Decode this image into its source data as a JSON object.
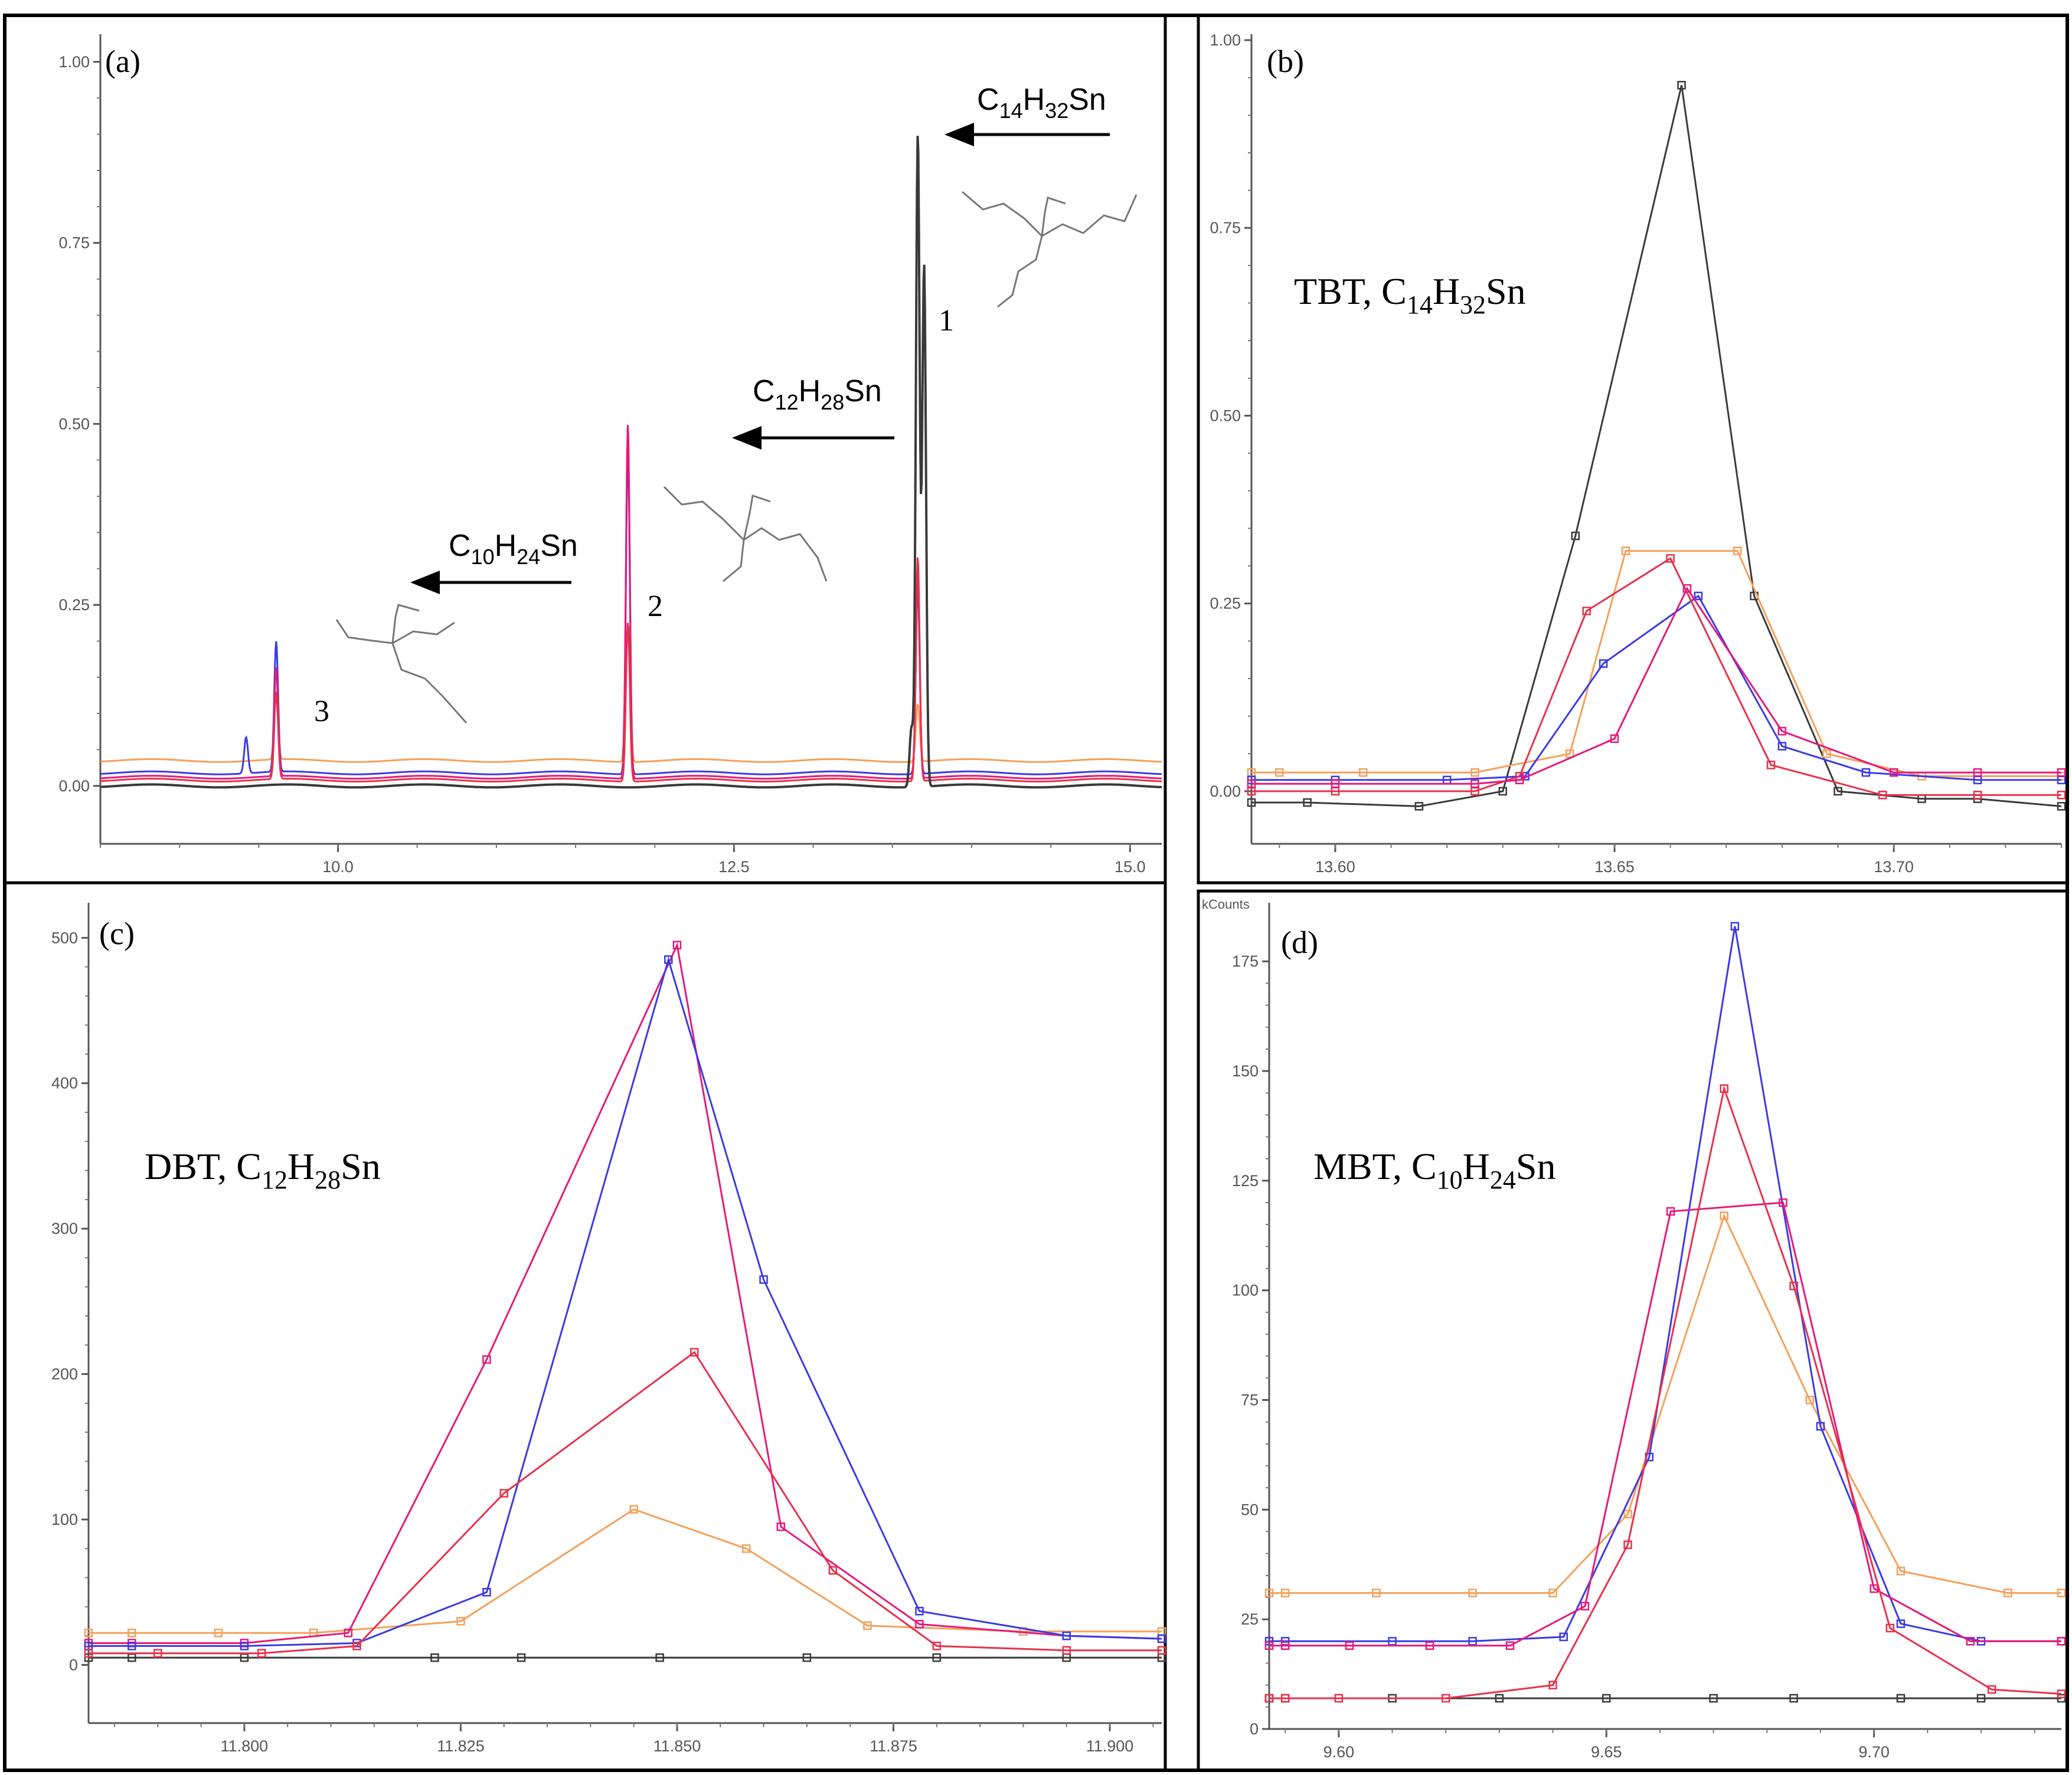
{
  "figure": {
    "background": "#ffffff",
    "border_color": "#000000",
    "colors": {
      "black": "#3a3a3a",
      "blue": "#3a3ae6",
      "red": "#e8314a",
      "magenta": "#e6197a",
      "orange": "#f5a05a"
    }
  },
  "chart_data": [
    {
      "id": "a",
      "panel_label": "(a)",
      "type": "line",
      "xlim": [
        8.5,
        15.2
      ],
      "ylim": [
        -0.08,
        1.03
      ],
      "x_ticks": [
        "10.0",
        "12.5",
        "15.0"
      ],
      "x_tick_values": [
        10.0,
        12.5,
        15.0
      ],
      "y_ticks": [
        "0.00",
        "0.25",
        "0.50",
        "0.75",
        "1.00"
      ],
      "y_tick_values": [
        0,
        0.25,
        0.5,
        0.75,
        1.0
      ],
      "annotations": [
        {
          "text": "C14H32Sn",
          "base": "C",
          "sub1": "14",
          "mid": "H",
          "sub2": "32",
          "tail": "Sn"
        },
        {
          "text": "C12H28Sn",
          "base": "C",
          "sub1": "12",
          "mid": "H",
          "sub2": "28",
          "tail": "Sn"
        },
        {
          "text": "C10H24Sn",
          "base": "C",
          "sub1": "10",
          "mid": "H",
          "sub2": "24",
          "tail": "Sn"
        }
      ],
      "peak_labels": [
        "1",
        "2",
        "3"
      ],
      "series": [
        {
          "name": "orange",
          "color": "#f5a05a",
          "baseline": 0.035,
          "peaks": [
            [
              9.61,
              0.09
            ],
            [
              11.83,
              0.45
            ],
            [
              13.66,
              0.08
            ]
          ]
        },
        {
          "name": "blue",
          "color": "#3a3ae6",
          "baseline": 0.018,
          "peaks": [
            [
              9.42,
              0.05
            ],
            [
              9.61,
              0.18
            ],
            [
              11.83,
              0.45
            ],
            [
              13.66,
              0.26
            ]
          ]
        },
        {
          "name": "magenta",
          "color": "#e6197a",
          "baseline": 0.012,
          "peaks": [
            [
              9.61,
              0.15
            ],
            [
              11.83,
              0.49
            ],
            [
              13.66,
              0.28
            ]
          ]
        },
        {
          "name": "red",
          "color": "#e8314a",
          "baseline": 0.008,
          "peaks": [
            [
              9.61,
              0.12
            ],
            [
              11.83,
              0.22
            ],
            [
              13.66,
              0.31
            ]
          ]
        },
        {
          "name": "black",
          "color": "#3a3a3a",
          "baseline": 0.0,
          "peaks": [
            [
              13.66,
              0.9
            ],
            [
              13.62,
              0.08
            ],
            [
              13.7,
              0.72
            ]
          ]
        }
      ]
    },
    {
      "id": "b",
      "panel_label": "(b)",
      "type": "line",
      "title": "TBT, C14H32Sn",
      "title_parts": {
        "base": "TBT, C",
        "sub1": "14",
        "mid": "H",
        "sub2": "32",
        "tail": "Sn"
      },
      "xlim": [
        13.585,
        13.73
      ],
      "ylim": [
        -0.07,
        1.0
      ],
      "x_ticks": [
        "13.60",
        "13.65",
        "13.70"
      ],
      "x_tick_values": [
        13.6,
        13.65,
        13.7
      ],
      "y_ticks": [
        "0.00",
        "0.25",
        "0.50",
        "0.75",
        "1.00"
      ],
      "y_tick_values": [
        0,
        0.25,
        0.5,
        0.75,
        1.0
      ],
      "series": [
        {
          "name": "black",
          "color": "#3a3a3a",
          "x": [
            13.585,
            13.595,
            13.615,
            13.63,
            13.643,
            13.662,
            13.675,
            13.69,
            13.705,
            13.715,
            13.73
          ],
          "y": [
            -0.015,
            -0.015,
            -0.02,
            0.0,
            0.34,
            0.94,
            0.26,
            0.0,
            -0.01,
            -0.01,
            -0.02
          ]
        },
        {
          "name": "orange",
          "color": "#f5a05a",
          "x": [
            13.585,
            13.59,
            13.605,
            13.625,
            13.642,
            13.652,
            13.672,
            13.688,
            13.705,
            13.73
          ],
          "y": [
            0.025,
            0.025,
            0.025,
            0.025,
            0.05,
            0.32,
            0.32,
            0.05,
            0.02,
            0.02
          ]
        },
        {
          "name": "blue",
          "color": "#3a3ae6",
          "x": [
            13.585,
            13.6,
            13.62,
            13.634,
            13.648,
            13.665,
            13.68,
            13.695,
            13.715,
            13.73
          ],
          "y": [
            0.015,
            0.015,
            0.015,
            0.02,
            0.17,
            0.26,
            0.06,
            0.025,
            0.015,
            0.015
          ]
        },
        {
          "name": "red",
          "color": "#e8314a",
          "x": [
            13.585,
            13.6,
            13.625,
            13.633,
            13.645,
            13.66,
            13.678,
            13.698,
            13.715,
            13.73
          ],
          "y": [
            0.0,
            0.0,
            0.0,
            0.02,
            0.24,
            0.31,
            0.035,
            -0.005,
            -0.005,
            -0.005
          ]
        },
        {
          "name": "magenta",
          "color": "#e6197a",
          "x": [
            13.585,
            13.6,
            13.625,
            13.633,
            13.65,
            13.663,
            13.68,
            13.7,
            13.715,
            13.73
          ],
          "y": [
            0.01,
            0.01,
            0.01,
            0.015,
            0.07,
            0.27,
            0.08,
            0.025,
            0.025,
            0.025
          ]
        }
      ]
    },
    {
      "id": "c",
      "panel_label": "(c)",
      "type": "line",
      "title": "DBT, C12H28Sn",
      "title_parts": {
        "base": "DBT, C",
        "sub1": "12",
        "mid": "H",
        "sub2": "28",
        "tail": "Sn"
      },
      "xlim": [
        11.782,
        11.906
      ],
      "ylim": [
        -40,
        520
      ],
      "x_ticks": [
        "11.800",
        "11.825",
        "11.850",
        "11.875",
        "11.900"
      ],
      "x_tick_values": [
        11.8,
        11.825,
        11.85,
        11.875,
        11.9
      ],
      "y_ticks": [
        "0",
        "100",
        "200",
        "300",
        "400",
        "500"
      ],
      "y_tick_values": [
        0,
        100,
        200,
        300,
        400,
        500
      ],
      "series": [
        {
          "name": "black",
          "color": "#3a3a3a",
          "x": [
            11.782,
            11.787,
            11.8,
            11.822,
            11.832,
            11.848,
            11.865,
            11.88,
            11.895,
            11.906
          ],
          "y": [
            5,
            5,
            5,
            5,
            5,
            5,
            5,
            5,
            5,
            5
          ]
        },
        {
          "name": "orange",
          "color": "#f5a05a",
          "x": [
            11.782,
            11.787,
            11.797,
            11.808,
            11.825,
            11.845,
            11.858,
            11.872,
            11.89,
            11.906
          ],
          "y": [
            22,
            22,
            22,
            22,
            30,
            107,
            80,
            27,
            23,
            23
          ]
        },
        {
          "name": "magenta",
          "color": "#e6197a",
          "x": [
            11.782,
            11.787,
            11.8,
            11.812,
            11.828,
            11.85,
            11.862,
            11.878,
            11.895,
            11.906
          ],
          "y": [
            15,
            15,
            15,
            22,
            210,
            495,
            95,
            28,
            20,
            18
          ]
        },
        {
          "name": "blue",
          "color": "#3a3ae6",
          "x": [
            11.782,
            11.787,
            11.8,
            11.813,
            11.828,
            11.849,
            11.86,
            11.878,
            11.895,
            11.906
          ],
          "y": [
            13,
            13,
            13,
            15,
            50,
            485,
            265,
            37,
            20,
            18
          ]
        },
        {
          "name": "red",
          "color": "#e8314a",
          "x": [
            11.782,
            11.79,
            11.802,
            11.813,
            11.83,
            11.852,
            11.868,
            11.88,
            11.895,
            11.906
          ],
          "y": [
            8,
            8,
            8,
            13,
            118,
            215,
            65,
            13,
            10,
            10
          ]
        }
      ]
    },
    {
      "id": "d",
      "panel_label": "(d)",
      "type": "line",
      "title": "MBT, C10H24Sn",
      "title_parts": {
        "base": "MBT, C",
        "sub1": "10",
        "mid": "H",
        "sub2": "24",
        "tail": "Sn"
      },
      "y_unit": "kCounts",
      "xlim": [
        9.587,
        9.735
      ],
      "ylim": [
        0,
        187
      ],
      "x_ticks": [
        "9.60",
        "9.65",
        "9.70"
      ],
      "x_tick_values": [
        9.6,
        9.65,
        9.7
      ],
      "y_ticks": [
        "0",
        "25",
        "50",
        "75",
        "100",
        "125",
        "150",
        "175"
      ],
      "y_tick_values": [
        0,
        25,
        50,
        75,
        100,
        125,
        150,
        175
      ],
      "series": [
        {
          "name": "black",
          "color": "#3a3a3a",
          "x": [
            9.587,
            9.59,
            9.61,
            9.63,
            9.65,
            9.67,
            9.685,
            9.705,
            9.72,
            9.735
          ],
          "y": [
            7,
            7,
            7,
            7,
            7,
            7,
            7,
            7,
            7,
            7
          ]
        },
        {
          "name": "orange",
          "color": "#f5a05a",
          "x": [
            9.587,
            9.59,
            9.607,
            9.625,
            9.64,
            9.654,
            9.672,
            9.688,
            9.705,
            9.725,
            9.735
          ],
          "y": [
            31,
            31,
            31,
            31,
            31,
            49,
            117,
            75,
            36,
            31,
            31
          ]
        },
        {
          "name": "blue",
          "color": "#3a3ae6",
          "x": [
            9.587,
            9.59,
            9.61,
            9.625,
            9.642,
            9.658,
            9.674,
            9.69,
            9.705,
            9.72,
            9.735
          ],
          "y": [
            20,
            20,
            20,
            20,
            21,
            62,
            183,
            69,
            24,
            20,
            20
          ]
        },
        {
          "name": "magenta",
          "color": "#e6197a",
          "x": [
            9.587,
            9.59,
            9.602,
            9.617,
            9.632,
            9.646,
            9.662,
            9.683,
            9.7,
            9.718,
            9.735
          ],
          "y": [
            19,
            19,
            19,
            19,
            19,
            28,
            118,
            120,
            32,
            20,
            20
          ]
        },
        {
          "name": "red",
          "color": "#e8314a",
          "x": [
            9.587,
            9.59,
            9.6,
            9.62,
            9.64,
            9.654,
            9.672,
            9.685,
            9.703,
            9.722,
            9.735
          ],
          "y": [
            7,
            7,
            7,
            7,
            10,
            42,
            146,
            101,
            23,
            9,
            8
          ]
        }
      ]
    }
  ]
}
